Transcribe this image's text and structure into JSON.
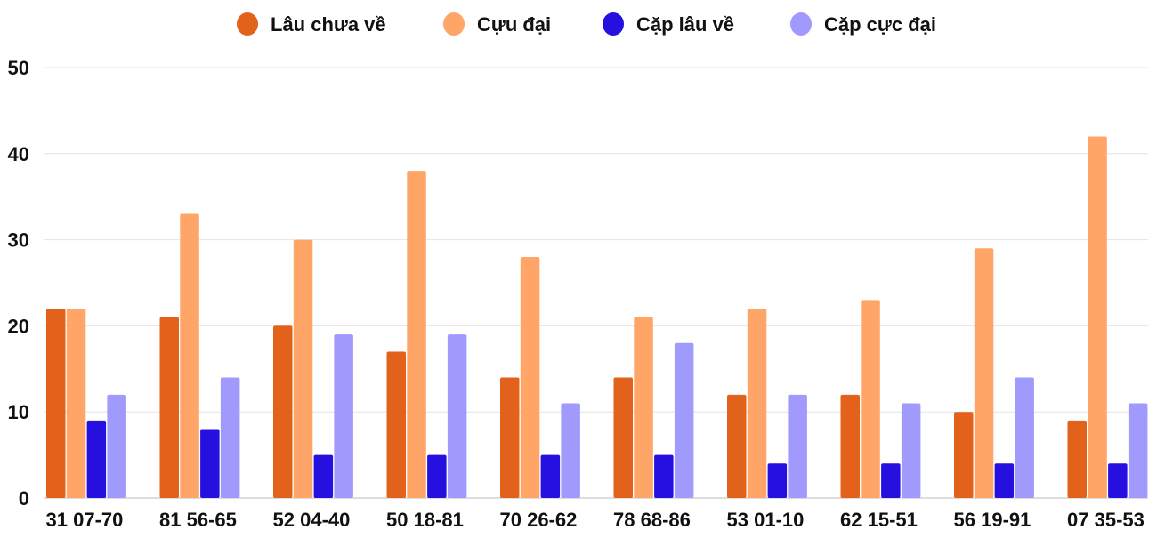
{
  "chart_data": {
    "type": "bar",
    "title": "",
    "xlabel": "",
    "ylabel": "",
    "ylim": [
      0,
      50
    ],
    "yticks": [
      0,
      10,
      20,
      30,
      40,
      50
    ],
    "grid": true,
    "legend_position": "top",
    "categories": [
      "31 07-70",
      "81 56-65",
      "52 04-40",
      "50 18-81",
      "70 26-62",
      "78 68-86",
      "53 01-10",
      "62 15-51",
      "56 19-91",
      "07 35-53"
    ],
    "series": [
      {
        "name": "Lâu chưa về",
        "color": "#e2621b",
        "values": [
          22,
          21,
          20,
          17,
          14,
          14,
          12,
          12,
          10,
          9
        ]
      },
      {
        "name": "Cựu đại",
        "color": "#ffa568",
        "values": [
          22,
          33,
          30,
          38,
          28,
          21,
          22,
          23,
          29,
          42
        ]
      },
      {
        "name": "Cặp lâu về",
        "color": "#2510e0",
        "values": [
          9,
          8,
          5,
          5,
          5,
          5,
          4,
          4,
          4,
          4
        ]
      },
      {
        "name": "Cặp cực đại",
        "color": "#a09afc",
        "values": [
          12,
          14,
          19,
          19,
          11,
          18,
          12,
          11,
          14,
          11
        ]
      }
    ]
  }
}
